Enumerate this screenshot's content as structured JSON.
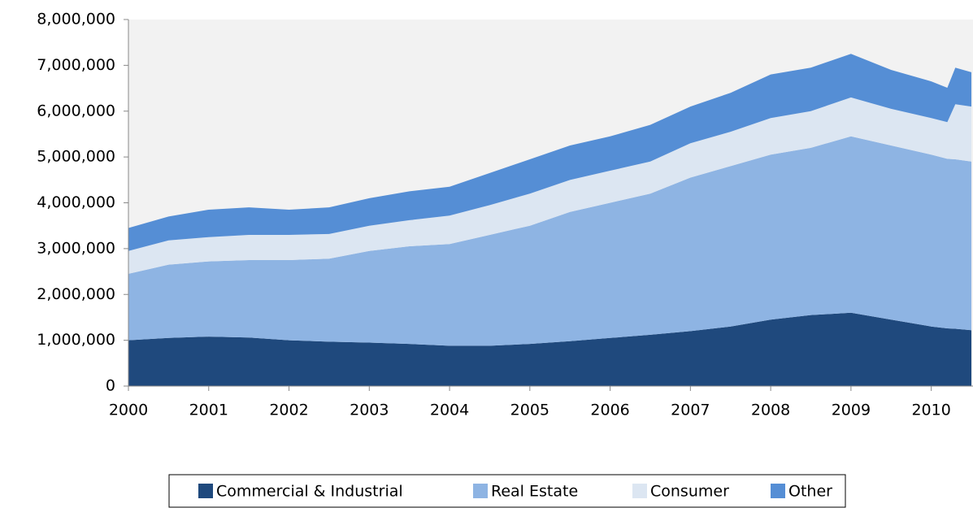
{
  "chart_data": {
    "type": "stacked_area",
    "x": [
      2000,
      2000.5,
      2001,
      2001.5,
      2002,
      2002.5,
      2003,
      2003.5,
      2004,
      2004.5,
      2005,
      2005.5,
      2006,
      2006.5,
      2007,
      2007.5,
      2008,
      2008.5,
      2009,
      2009.5,
      2010,
      2010.2,
      2010.3,
      2010.5
    ],
    "series": [
      {
        "name": "Commercial & Industrial",
        "color": "#1f497d",
        "values": [
          1000000,
          1050000,
          1080000,
          1060000,
          1000000,
          970000,
          950000,
          920000,
          880000,
          880000,
          920000,
          980000,
          1050000,
          1120000,
          1200000,
          1300000,
          1450000,
          1550000,
          1600000,
          1450000,
          1300000,
          1260000,
          1250000,
          1220000
        ]
      },
      {
        "name": "Real Estate",
        "color": "#8eb4e3",
        "values": [
          1450000,
          1600000,
          1640000,
          1690000,
          1750000,
          1810000,
          2000000,
          2130000,
          2220000,
          2420000,
          2580000,
          2820000,
          2950000,
          3080000,
          3350000,
          3500000,
          3600000,
          3650000,
          3850000,
          3800000,
          3750000,
          3700000,
          3700000,
          3680000
        ]
      },
      {
        "name": "Consumer",
        "color": "#dce6f2",
        "values": [
          500000,
          530000,
          530000,
          550000,
          550000,
          540000,
          550000,
          570000,
          620000,
          650000,
          700000,
          700000,
          700000,
          700000,
          750000,
          750000,
          800000,
          800000,
          850000,
          800000,
          800000,
          800000,
          1200000,
          1200000
        ]
      },
      {
        "name": "Other",
        "color": "#558ed5",
        "values": [
          500000,
          520000,
          600000,
          600000,
          550000,
          580000,
          600000,
          630000,
          630000,
          700000,
          750000,
          750000,
          750000,
          800000,
          800000,
          850000,
          950000,
          950000,
          950000,
          850000,
          800000,
          750000,
          800000,
          750000
        ]
      }
    ],
    "xlim": [
      2000,
      2010.52
    ],
    "xticks": [
      2000,
      2001,
      2002,
      2003,
      2004,
      2005,
      2006,
      2007,
      2008,
      2009,
      2010
    ],
    "ylim": [
      0,
      8000000
    ],
    "yticks": [
      0,
      {
        "value": 1000000,
        "label": "1,000,000"
      },
      {
        "value": 2000000,
        "label": "2,000,000"
      },
      {
        "value": 3000000,
        "label": "3,000,000"
      },
      {
        "value": 4000000,
        "label": "4,000,000"
      },
      {
        "value": 5000000,
        "label": "5,000,000"
      },
      {
        "value": 6000000,
        "label": "6,000,000"
      },
      {
        "value": 7000000,
        "label": "7,000,000"
      },
      {
        "value": 8000000,
        "label": "8,000,000"
      }
    ],
    "grid": false,
    "legend": "bottom"
  }
}
